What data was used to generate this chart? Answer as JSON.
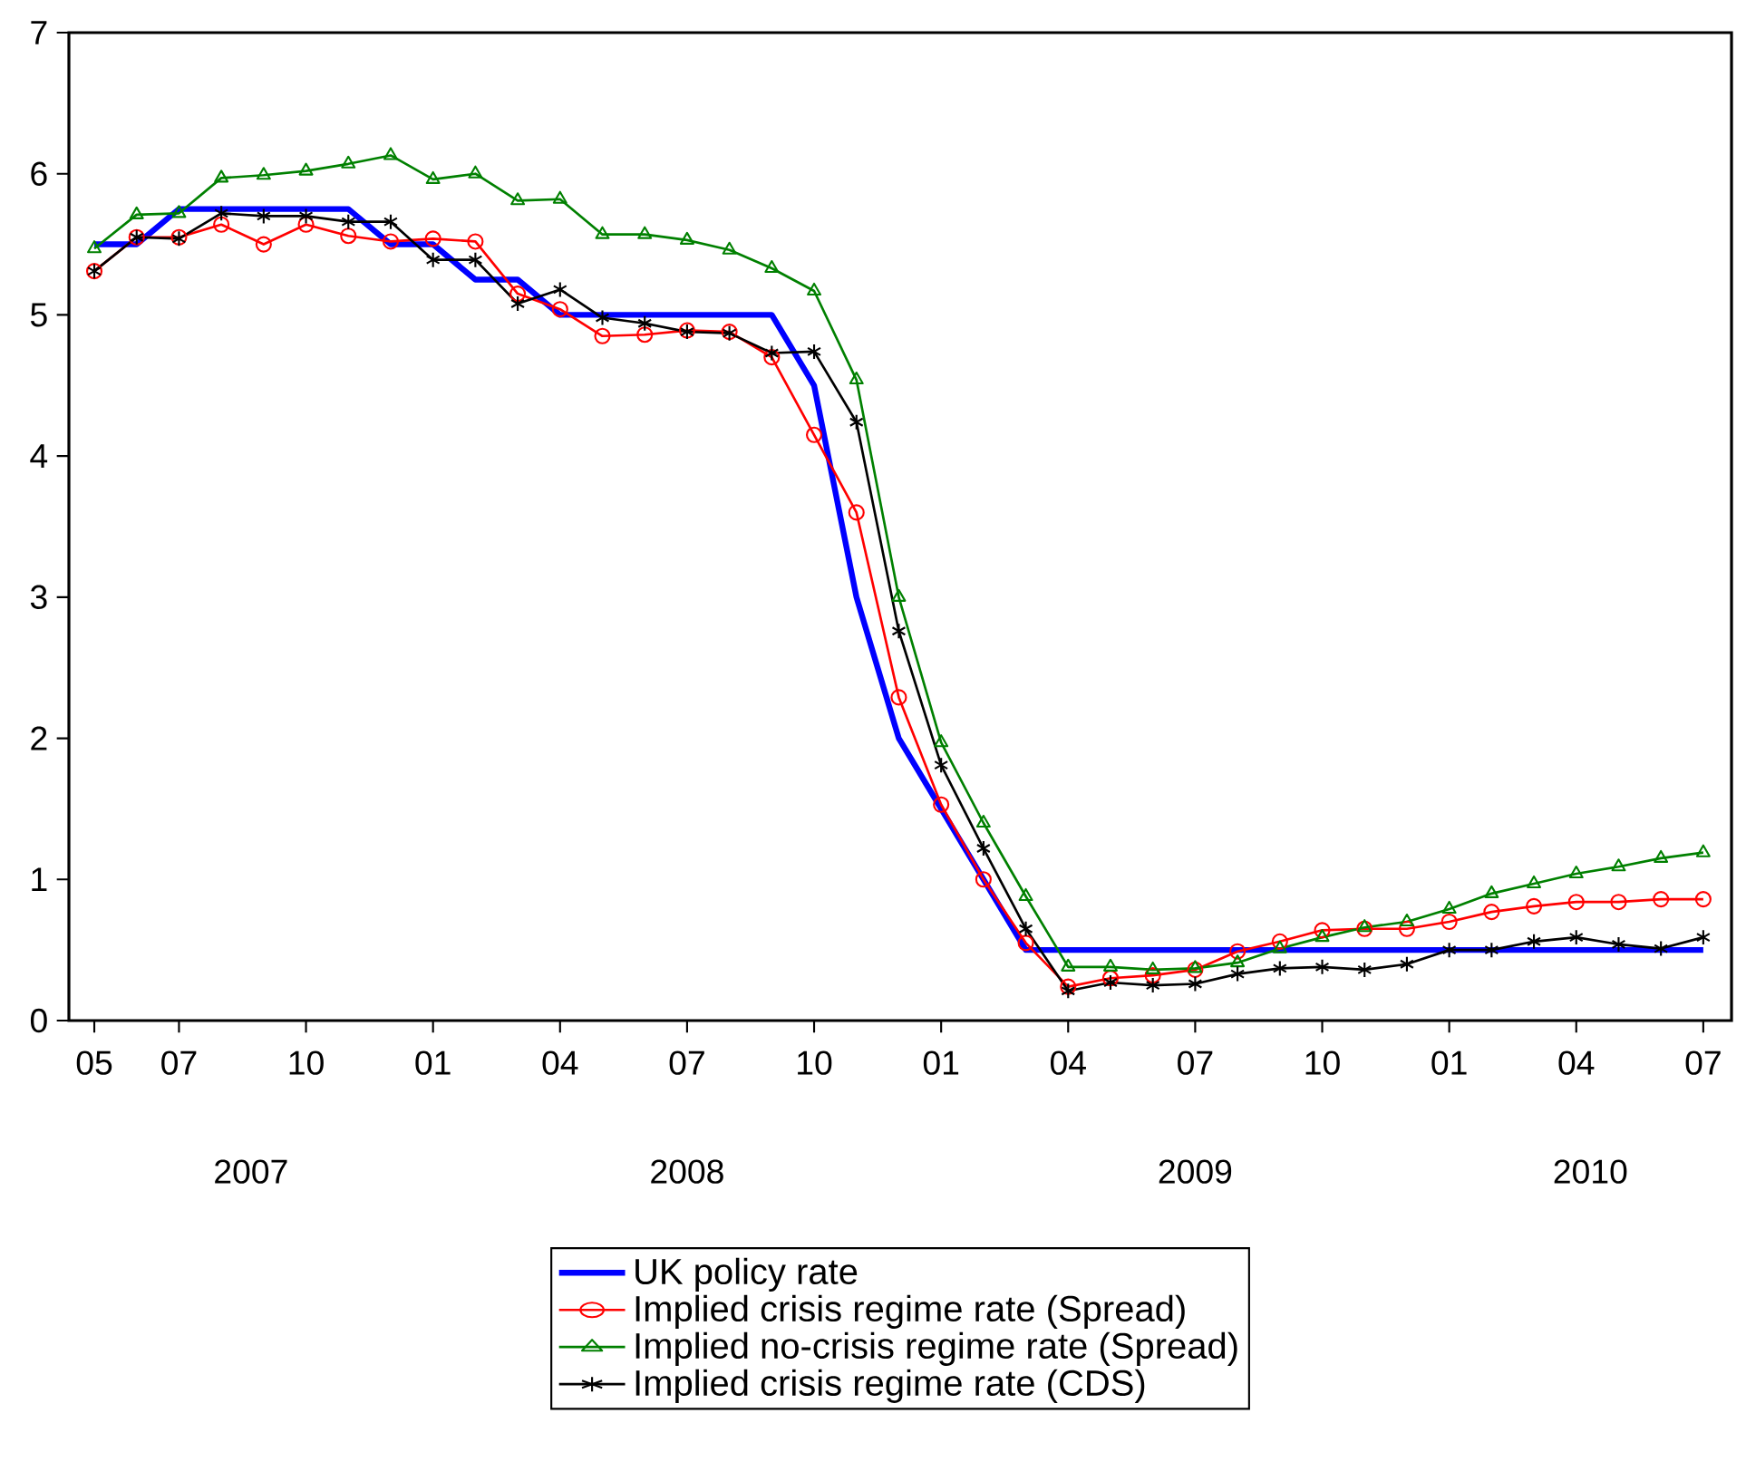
{
  "chart_data": {
    "type": "line",
    "x": [
      "2007-05",
      "2007-06",
      "2007-07",
      "2007-08",
      "2007-09",
      "2007-10",
      "2007-11",
      "2007-12",
      "2008-01",
      "2008-02",
      "2008-03",
      "2008-04",
      "2008-05",
      "2008-06",
      "2008-07",
      "2008-08",
      "2008-09",
      "2008-10",
      "2008-11",
      "2008-12",
      "2009-01",
      "2009-02",
      "2009-03",
      "2009-04",
      "2009-05",
      "2009-06",
      "2009-07",
      "2009-08",
      "2009-09",
      "2009-10",
      "2009-11",
      "2009-12",
      "2010-01",
      "2010-02",
      "2010-03",
      "2010-04",
      "2010-05",
      "2010-06",
      "2010-07"
    ],
    "series": [
      {
        "name": "UK policy rate",
        "color": "#0000ff",
        "marker": "none",
        "values": [
          5.5,
          5.5,
          5.75,
          5.75,
          5.75,
          5.75,
          5.75,
          5.5,
          5.5,
          5.25,
          5.25,
          5.0,
          5.0,
          5.0,
          5.0,
          5.0,
          5.0,
          4.5,
          3.0,
          2.0,
          1.5,
          1.0,
          0.5,
          0.5,
          0.5,
          0.5,
          0.5,
          0.5,
          0.5,
          0.5,
          0.5,
          0.5,
          0.5,
          0.5,
          0.5,
          0.5,
          0.5,
          0.5,
          0.5
        ]
      },
      {
        "name": "Implied crisis regime rate (Spread)",
        "color": "#ff0000",
        "marker": "circle",
        "values": [
          5.31,
          5.55,
          5.55,
          5.64,
          5.5,
          5.64,
          5.56,
          5.52,
          5.54,
          5.52,
          5.15,
          5.04,
          4.85,
          4.86,
          4.89,
          4.88,
          4.7,
          4.15,
          3.6,
          2.29,
          1.53,
          1.0,
          0.55,
          0.24,
          0.3,
          0.32,
          0.36,
          0.49,
          0.56,
          0.64,
          0.65,
          0.65,
          0.7,
          0.77,
          0.81,
          0.84,
          0.84,
          0.86,
          0.86
        ]
      },
      {
        "name": "Implied no-crisis regime rate (Spread)",
        "color": "#008000",
        "marker": "triangle",
        "values": [
          5.47,
          5.71,
          5.72,
          5.97,
          5.99,
          6.02,
          6.07,
          6.13,
          5.96,
          6.0,
          5.81,
          5.82,
          5.57,
          5.57,
          5.53,
          5.46,
          5.33,
          5.17,
          4.54,
          3.0,
          1.97,
          1.4,
          0.88,
          0.38,
          0.38,
          0.36,
          0.37,
          0.41,
          0.51,
          0.59,
          0.66,
          0.7,
          0.79,
          0.9,
          0.97,
          1.04,
          1.09,
          1.15,
          1.19
        ]
      },
      {
        "name": "Implied crisis regime rate (CDS)",
        "color": "#000000",
        "marker": "cross",
        "values": [
          5.31,
          5.55,
          5.54,
          5.72,
          5.7,
          5.7,
          5.66,
          5.66,
          5.39,
          5.39,
          5.08,
          5.18,
          4.98,
          4.94,
          4.88,
          4.87,
          4.73,
          4.74,
          4.24,
          2.76,
          1.81,
          1.22,
          0.65,
          0.21,
          0.27,
          0.25,
          0.26,
          0.33,
          0.37,
          0.38,
          0.36,
          0.4,
          0.5,
          0.5,
          0.56,
          0.59,
          0.54,
          0.51,
          0.59
        ]
      }
    ],
    "xlim": [
      "2007-04-13",
      "2010-07-21"
    ],
    "xticks": [
      {
        "value": "2007-05",
        "label": "05"
      },
      {
        "value": "2007-07",
        "label": "07"
      },
      {
        "value": "2007-10",
        "label": "10"
      },
      {
        "value": "2008-01",
        "label": "01"
      },
      {
        "value": "2008-04",
        "label": "04"
      },
      {
        "value": "2008-07",
        "label": "07"
      },
      {
        "value": "2008-10",
        "label": "10"
      },
      {
        "value": "2009-01",
        "label": "01"
      },
      {
        "value": "2009-04",
        "label": "04"
      },
      {
        "value": "2009-07",
        "label": "07"
      },
      {
        "value": "2009-10",
        "label": "10"
      },
      {
        "value": "2010-01",
        "label": "01"
      },
      {
        "value": "2010-04",
        "label": "04"
      },
      {
        "value": "2010-07",
        "label": "07"
      }
    ],
    "ylim": [
      0,
      7
    ],
    "yticks": [
      0,
      1,
      2,
      3,
      4,
      5,
      6,
      7
    ],
    "annotations": [
      "2007",
      "2008",
      "2009",
      "2010"
    ],
    "grid": false,
    "legend": "bottom",
    "line_style": "solid"
  }
}
